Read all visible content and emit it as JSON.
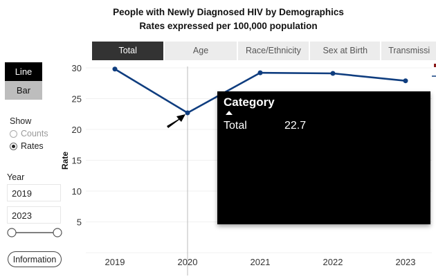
{
  "header": {
    "title": "People with Newly Diagnosed HIV by Demographics",
    "subtitle": "Rates expressed per 100,000 population"
  },
  "tabs": [
    {
      "label": "Total",
      "active": true
    },
    {
      "label": "Age",
      "active": false
    },
    {
      "label": "Race/Ethnicity",
      "active": false
    },
    {
      "label": "Sex at Birth",
      "active": false
    },
    {
      "label": "Transmissi",
      "active": false
    }
  ],
  "sidebar": {
    "chart_type_buttons": {
      "line": "Line",
      "bar": "Bar",
      "selected": "Line"
    },
    "show_label": "Show",
    "show_options": [
      {
        "label": "Counts",
        "checked": false
      },
      {
        "label": "Rates",
        "checked": true
      }
    ],
    "year_label": "Year",
    "year_start": "2019",
    "year_end": "2023",
    "information_label": "Information"
  },
  "tooltip": {
    "heading": "Category",
    "name": "Total",
    "value": "22.7"
  },
  "colors": {
    "line": "#0f3d7f",
    "tab_active": "#333333",
    "tab_inactive": "#ececec"
  },
  "chart_data": {
    "type": "line",
    "title": "People with Newly Diagnosed HIV by Demographics",
    "subtitle": "Rates expressed per 100,000 population",
    "xlabel": "",
    "ylabel": "Rate",
    "categories": [
      "2019",
      "2020",
      "2021",
      "2022",
      "2023"
    ],
    "series": [
      {
        "name": "Total",
        "values": [
          29.8,
          22.7,
          29.2,
          29.1,
          27.9
        ]
      }
    ],
    "yticks": [
      5,
      10,
      15,
      20,
      25,
      30
    ],
    "ylim": [
      0,
      30
    ],
    "grid": true,
    "hover_category": "2020"
  }
}
